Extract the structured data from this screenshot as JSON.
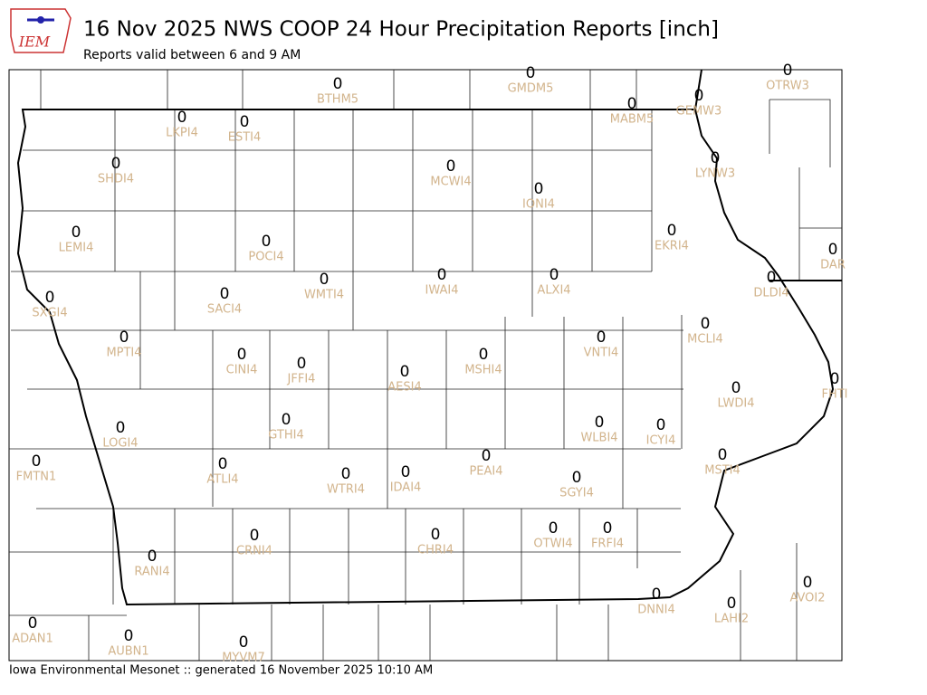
{
  "header": {
    "logo_text": "IEM",
    "title": "16 Nov 2025 NWS COOP 24 Hour Precipitation Reports [inch]",
    "subtitle": "Reports valid between 6 and 9 AM"
  },
  "stations": [
    {
      "id": "BTHM5",
      "value": 0
    },
    {
      "id": "GMDM5",
      "value": 0
    },
    {
      "id": "OTRW3",
      "value": 0
    },
    {
      "id": "MABM5",
      "value": 0
    },
    {
      "id": "GEMW3",
      "value": 0
    },
    {
      "id": "LKPI4",
      "value": 0
    },
    {
      "id": "ESTI4",
      "value": 0
    },
    {
      "id": "SHDI4",
      "value": 0
    },
    {
      "id": "MCWI4",
      "value": 0
    },
    {
      "id": "LYNW3",
      "value": 0
    },
    {
      "id": "IONI4",
      "value": 0
    },
    {
      "id": "LEMI4",
      "value": 0
    },
    {
      "id": "POCI4",
      "value": 0
    },
    {
      "id": "EKRI4",
      "value": 0
    },
    {
      "id": "DAR",
      "value": 0
    },
    {
      "id": "IWAI4",
      "value": 0
    },
    {
      "id": "ALXI4",
      "value": 0
    },
    {
      "id": "DLDI4",
      "value": 0
    },
    {
      "id": "WMTI4",
      "value": 0
    },
    {
      "id": "SACI4",
      "value": 0
    },
    {
      "id": "SXGI4",
      "value": 0
    },
    {
      "id": "MPTI4",
      "value": 0
    },
    {
      "id": "VNTI4",
      "value": 0
    },
    {
      "id": "MCLI4",
      "value": 0
    },
    {
      "id": "CINI4",
      "value": 0
    },
    {
      "id": "JFFI4",
      "value": 0
    },
    {
      "id": "MSHI4",
      "value": 0
    },
    {
      "id": "AESI4",
      "value": 0
    },
    {
      "id": "FHTI",
      "value": 0
    },
    {
      "id": "LWDI4",
      "value": 0
    },
    {
      "id": "LOGI4",
      "value": 0
    },
    {
      "id": "GTHI4",
      "value": 0
    },
    {
      "id": "WLBI4",
      "value": 0
    },
    {
      "id": "ICYI4",
      "value": 0
    },
    {
      "id": "FMTN1",
      "value": 0
    },
    {
      "id": "PEAI4",
      "value": 0
    },
    {
      "id": "MSTI4",
      "value": 0
    },
    {
      "id": "ATLI4",
      "value": 0
    },
    {
      "id": "WTRI4",
      "value": 0
    },
    {
      "id": "IDAI4",
      "value": 0
    },
    {
      "id": "SGYI4",
      "value": 0
    },
    {
      "id": "CRNI4",
      "value": 0
    },
    {
      "id": "CHRI4",
      "value": 0
    },
    {
      "id": "OTWI4",
      "value": 0
    },
    {
      "id": "FRFI4",
      "value": 0
    },
    {
      "id": "RANI4",
      "value": 0
    },
    {
      "id": "AVOI2",
      "value": 0
    },
    {
      "id": "DNNI4",
      "value": 0
    },
    {
      "id": "LAHI2",
      "value": 0
    },
    {
      "id": "ADAN1",
      "value": 0
    },
    {
      "id": "AUBN1",
      "value": 0
    },
    {
      "id": "MYVM7",
      "value": 0
    }
  ],
  "footer": "Iowa Environmental Mesonet :: generated 16 November 2025 10:10 AM"
}
